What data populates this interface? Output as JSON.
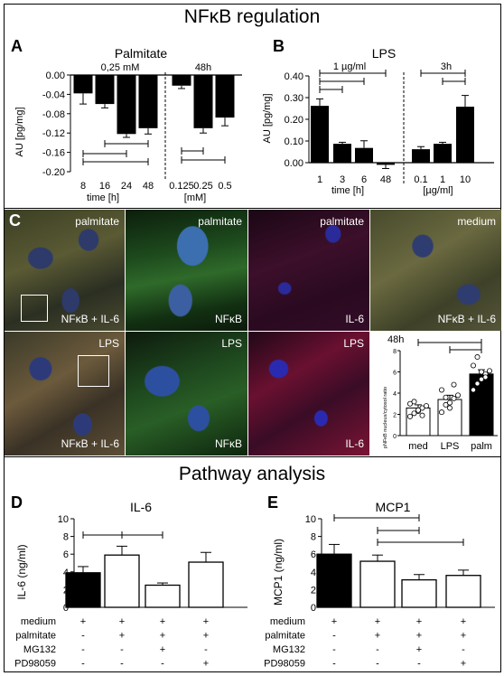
{
  "figure": {
    "section1_title": "NFκB regulation",
    "section2_title": "Pathway analysis"
  },
  "panelA": {
    "letter": "A",
    "title": "Palmitate",
    "conc_label": "0,25 mM",
    "time_label": "48h",
    "ylabel": "AU [pg/mg]",
    "xlabel_left": "time [h]",
    "xlabel_right": "[mM]"
  },
  "panelB": {
    "letter": "B",
    "title": "LPS",
    "conc_label": "1 µg/ml",
    "time_label": "3h",
    "ylabel": "AU [pg/mg]",
    "xlabel_left": "time [h]",
    "xlabel_right": "[µg/ml]"
  },
  "panelC": {
    "letter": "C",
    "inset_time": "48h",
    "inset_ylabel": "pNFκB nucleus/cytosol ratio",
    "micrographs": [
      {
        "top": "palmitate",
        "bottom": "NFκB + IL-6"
      },
      {
        "top": "palmitate",
        "bottom": "NFκB"
      },
      {
        "top": "palmitate",
        "bottom": "IL-6"
      },
      {
        "top": "medium",
        "bottom": "NFκB + IL-6"
      },
      {
        "top": "LPS",
        "bottom": "NFκB + IL-6"
      },
      {
        "top": "LPS",
        "bottom": "NFκB"
      },
      {
        "top": "LPS",
        "bottom": "IL-6"
      }
    ]
  },
  "panelD": {
    "letter": "D",
    "title": "IL-6",
    "ylabel": "IL-6 (ng/ml)"
  },
  "panelE": {
    "letter": "E",
    "title": "MCP1",
    "ylabel": "MCP1 (ng/ml)"
  },
  "conditions_table": {
    "row_labels": [
      "medium",
      "palmitate",
      "MG132",
      "PD98059"
    ],
    "columns": [
      [
        "+",
        "-",
        "-",
        "-"
      ],
      [
        "+",
        "+",
        "-",
        "-"
      ],
      [
        "+",
        "+",
        "+",
        "-"
      ],
      [
        "+",
        "+",
        "-",
        "+"
      ]
    ]
  },
  "chart_data": [
    {
      "id": "A",
      "type": "bar",
      "title": "Palmitate",
      "ylabel": "AU [pg/mg]",
      "ylim": [
        -0.2,
        0.0
      ],
      "yticks": [
        "0.00",
        "-0.04",
        "-0.08",
        "-0.12",
        "-0.16",
        "-0.20"
      ],
      "groups": [
        {
          "xlabel": "time [h]",
          "header": "0,25 mM",
          "categories": [
            "8",
            "16",
            "24",
            "48"
          ],
          "values": [
            -0.038,
            -0.06,
            -0.122,
            -0.11
          ],
          "errors": [
            0.022,
            0.008,
            0.007,
            0.012
          ]
        },
        {
          "xlabel": "[mM]",
          "header": "48h",
          "categories": [
            "0.125",
            "0.25",
            "0.5"
          ],
          "values": [
            -0.022,
            -0.11,
            -0.088
          ],
          "errors": [
            0.006,
            0.01,
            0.017
          ]
        }
      ]
    },
    {
      "id": "B",
      "type": "bar",
      "title": "LPS",
      "ylabel": "AU [pg/mg]",
      "ylim": [
        -0.05,
        0.4
      ],
      "yticks": [
        "0.40",
        "0.30",
        "0.20",
        "0.10",
        "0.00"
      ],
      "groups": [
        {
          "xlabel": "time [h]",
          "header": "1 µg/ml",
          "categories": [
            "1",
            "3",
            "6",
            "48"
          ],
          "values": [
            0.262,
            0.087,
            0.068,
            -0.01
          ],
          "errors": [
            0.032,
            0.007,
            0.033,
            0.017
          ]
        },
        {
          "xlabel": "[µg/ml]",
          "header": "3h",
          "categories": [
            "0.1",
            "1",
            "10"
          ],
          "values": [
            0.062,
            0.087,
            0.258
          ],
          "errors": [
            0.012,
            0.007,
            0.052
          ]
        }
      ]
    },
    {
      "id": "C-inset",
      "type": "bar",
      "title": "48h",
      "ylabel": "pNFκB nucleus/cytosol ratio",
      "ylim": [
        0,
        8
      ],
      "yticks": [
        "0",
        "2",
        "4",
        "6",
        "8"
      ],
      "categories": [
        "med",
        "LPS",
        "palm"
      ],
      "values": [
        2.6,
        3.4,
        5.8
      ],
      "errors": [
        0.3,
        0.4,
        0.4
      ],
      "points": [
        [
          1.8,
          2.1,
          2.3,
          2.6,
          2.8,
          3.0,
          3.2,
          2.4,
          1.9
        ],
        [
          2.2,
          2.9,
          3.1,
          3.5,
          3.8,
          4.3,
          3.6,
          2.6,
          4.8
        ],
        [
          4.3,
          4.9,
          5.3,
          5.8,
          6.1,
          6.6,
          7.4,
          6.0,
          5.5
        ]
      ]
    },
    {
      "id": "D",
      "type": "bar",
      "title": "IL-6",
      "ylabel": "IL-6 (ng/ml)",
      "ylim": [
        0,
        10
      ],
      "yticks": [
        "0",
        "2",
        "4",
        "6",
        "8",
        "10"
      ],
      "values": [
        3.9,
        5.9,
        2.5,
        5.1
      ],
      "errors": [
        0.7,
        1.0,
        0.25,
        1.1
      ]
    },
    {
      "id": "E",
      "type": "bar",
      "title": "MCP1",
      "ylabel": "MCP1 (ng/ml)",
      "ylim": [
        0,
        10
      ],
      "yticks": [
        "0",
        "2",
        "4",
        "6",
        "8",
        "10"
      ],
      "values": [
        6.0,
        5.2,
        3.1,
        3.6
      ],
      "errors": [
        1.1,
        0.7,
        0.6,
        0.6
      ]
    }
  ]
}
